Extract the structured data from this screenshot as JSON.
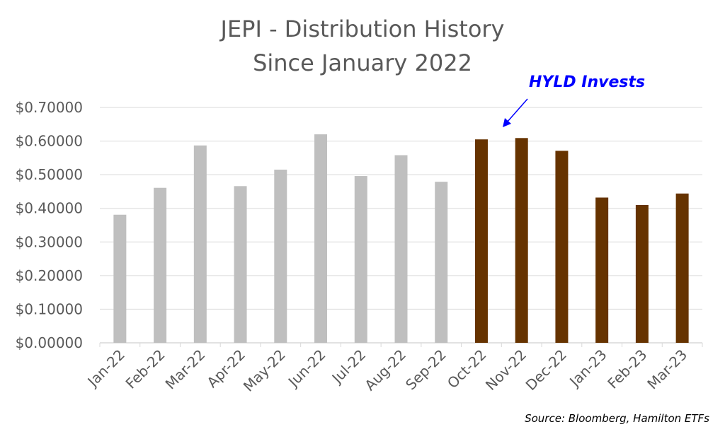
{
  "chart_data": {
    "type": "bar",
    "title": "JEPI - Distribution History",
    "subtitle": "Since January 2022",
    "xlabel": "",
    "ylabel": "",
    "ylim": [
      0,
      0.7
    ],
    "yticks": [
      "$0.00000",
      "$0.10000",
      "$0.20000",
      "$0.30000",
      "$0.40000",
      "$0.50000",
      "$0.60000",
      "$0.70000"
    ],
    "grid": true,
    "categories": [
      "Jan-22",
      "Feb-22",
      "Mar-22",
      "Apr-22",
      "May-22",
      "Jun-22",
      "Jul-22",
      "Aug-22",
      "Sep-22",
      "Oct-22",
      "Nov-22",
      "Dec-22",
      "Jan-23",
      "Feb-23",
      "Mar-23"
    ],
    "values": [
      0.381,
      0.461,
      0.587,
      0.466,
      0.515,
      0.62,
      0.496,
      0.558,
      0.479,
      0.605,
      0.609,
      0.571,
      0.432,
      0.41,
      0.444
    ],
    "colors": {
      "before": "#bfbfbf",
      "after": "#663300"
    },
    "highlight_from_index": 9,
    "annotation": "HYLD Invests",
    "source": "Source: Bloomberg,  Hamilton ETFs"
  }
}
